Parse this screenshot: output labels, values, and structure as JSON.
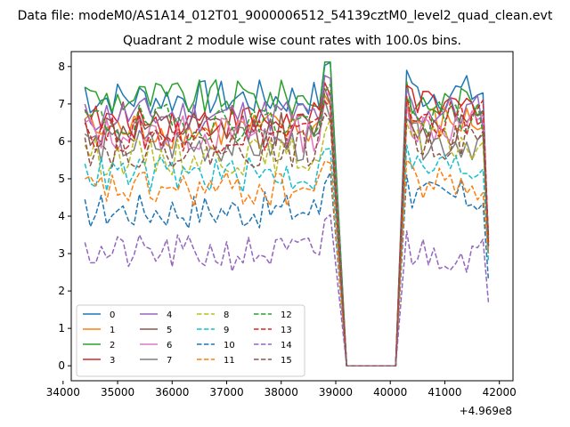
{
  "chart_data": {
    "type": "line",
    "suptitle": "Data file: modeM0/AS1A14_012T01_9000006512_54139cztM0_level2_quad_clean.evt",
    "title": "Quadrant 2 module wise count rates with 100.0s bins.",
    "xlabel": "",
    "ylabel": "",
    "x_offset_text": "+4.969e8",
    "xlim": [
      34150,
      42250
    ],
    "ylim": [
      -0.4,
      8.4
    ],
    "xticks": [
      34000,
      35000,
      36000,
      37000,
      38000,
      39000,
      40000,
      41000,
      42000
    ],
    "yticks": [
      0,
      1,
      2,
      3,
      4,
      5,
      6,
      7,
      8
    ],
    "grid": false,
    "legend": {
      "location": "lower-left",
      "columns": 4,
      "entries": [
        "0",
        "1",
        "2",
        "3",
        "4",
        "5",
        "6",
        "7",
        "8",
        "9",
        "10",
        "11",
        "12",
        "13",
        "14",
        "15"
      ]
    },
    "segments": [
      {
        "start": 34400,
        "step": 100,
        "count": 46
      },
      {
        "start": 39200,
        "step": 100,
        "count": 10
      },
      {
        "start": 40300,
        "step": 100,
        "count": 16
      }
    ],
    "series": [
      {
        "name": "0",
        "color": "#1f77b4",
        "dash": "solid",
        "mean1": 7.15,
        "mean3": 7.3,
        "end_value": 3.2
      },
      {
        "name": "1",
        "color": "#ff7f0e",
        "dash": "solid",
        "mean1": 6.3,
        "mean3": 6.5,
        "end_value": 3.3
      },
      {
        "name": "2",
        "color": "#2ca02c",
        "dash": "solid",
        "mean1": 7.15,
        "mean3": 7.0,
        "end_value": 3.4
      },
      {
        "name": "3",
        "color": "#d62728",
        "dash": "solid",
        "mean1": 6.55,
        "mean3": 6.9,
        "end_value": 3.5
      },
      {
        "name": "4",
        "color": "#9467bd",
        "dash": "solid",
        "mean1": 6.7,
        "mean3": 6.8,
        "end_value": 3.3
      },
      {
        "name": "5",
        "color": "#8c564b",
        "dash": "solid",
        "mean1": 6.3,
        "mean3": 6.4,
        "end_value": 3.2
      },
      {
        "name": "6",
        "color": "#e377c2",
        "dash": "solid",
        "mean1": 6.2,
        "mean3": 6.4,
        "end_value": 3.4
      },
      {
        "name": "7",
        "color": "#7f7f7f",
        "dash": "solid",
        "mean1": 5.9,
        "mean3": 6.0,
        "end_value": 3.0
      },
      {
        "name": "8",
        "color": "#bcbd22",
        "dash": "dashed",
        "mean1": 5.6,
        "mean3": 5.9,
        "end_value": 3.1
      },
      {
        "name": "9",
        "color": "#17becf",
        "dash": "dashed",
        "mean1": 5.1,
        "mean3": 5.3,
        "end_value": 2.8
      },
      {
        "name": "10",
        "color": "#1f77b4",
        "dash": "dashed",
        "mean1": 4.15,
        "mean3": 4.5,
        "end_value": 2.3
      },
      {
        "name": "11",
        "color": "#ff7f0e",
        "dash": "dashed",
        "mean1": 4.7,
        "mean3": 4.9,
        "end_value": 3.0
      },
      {
        "name": "12",
        "color": "#2ca02c",
        "dash": "dashed",
        "mean1": 6.5,
        "mean3": 6.6,
        "end_value": 3.5
      },
      {
        "name": "13",
        "color": "#d62728",
        "dash": "dashed",
        "mean1": 6.2,
        "mean3": 6.6,
        "end_value": 3.3
      },
      {
        "name": "14",
        "color": "#9467bd",
        "dash": "dashed",
        "mean1": 3.0,
        "mean3": 3.0,
        "end_value": 1.7
      },
      {
        "name": "15",
        "color": "#8c564b",
        "dash": "dashed",
        "mean1": 5.8,
        "mean3": 6.0,
        "end_value": 3.2
      }
    ]
  }
}
